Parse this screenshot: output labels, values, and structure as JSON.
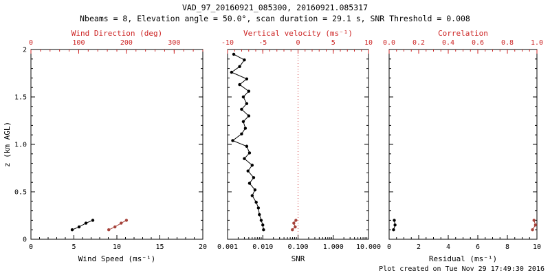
{
  "header": {
    "title": "VAD_97_20160921_085300, 20160921.085317",
    "subtitle": "Nbeams = 8, Elevation angle = 50.0°, scan duration = 29.1 s, SNR Threshold = 0.008"
  },
  "footer": {
    "created": "Plot created on Tue Nov 29 17:49:30 2016"
  },
  "colors": {
    "axis_red": "#cc2222",
    "data_red": "#a6423a",
    "black": "#000000"
  },
  "chart_data": [
    {
      "name": "wind",
      "type": "line",
      "xlabel": "Wind Speed (ms⁻¹)",
      "xlim": [
        0,
        20
      ],
      "x_ticks": [
        0,
        5,
        10,
        15,
        20
      ],
      "x_tick_labels": [
        "0",
        "5",
        "10",
        "15",
        "20"
      ],
      "x_minor": 1,
      "top_label": "Wind Direction (deg)",
      "top_lim": [
        0,
        360
      ],
      "top_ticks": [
        0,
        100,
        200,
        300
      ],
      "top_tick_labels": [
        "0",
        "100",
        "200",
        "300"
      ],
      "top_minor": 20,
      "ylabel": "z (km AGL)",
      "ylim": [
        0,
        2
      ],
      "y_ticks": [
        0,
        0.5,
        1,
        1.5,
        2
      ],
      "y_tick_labels": [
        "0",
        "0.5",
        "1.0",
        "1.5",
        "2"
      ],
      "y_minor": 0.1,
      "series": [
        {
          "name": "wind-speed",
          "color": "#000000",
          "z": [
            0.1,
            0.13,
            0.17,
            0.2
          ],
          "x": [
            4.8,
            5.6,
            6.4,
            7.2
          ]
        },
        {
          "name": "wind-direction",
          "axis": "top",
          "color": "#a6423a",
          "z": [
            0.1,
            0.13,
            0.17,
            0.2
          ],
          "x": [
            163,
            176,
            189,
            200
          ]
        }
      ]
    },
    {
      "name": "snr",
      "type": "line",
      "xlabel": "SNR",
      "xlim": [
        0.001,
        10
      ],
      "x_log": true,
      "x_ticks": [
        0.001,
        0.01,
        0.1,
        1,
        10
      ],
      "x_tick_labels": [
        "0.001",
        "0.010",
        "0.100",
        "1.000",
        "10.000"
      ],
      "top_label": "Vertical velocity (ms⁻¹)",
      "top_lim": [
        -10,
        10
      ],
      "top_ticks": [
        -10,
        -5,
        0,
        5,
        10
      ],
      "top_tick_labels": [
        "-10",
        "-5",
        "0",
        "5",
        "10"
      ],
      "top_minor": 1,
      "ylim": [
        0,
        2
      ],
      "y_ticks": [
        0,
        0.5,
        1,
        1.5,
        2
      ],
      "y_minor": 0.1,
      "ref_top": 0,
      "series": [
        {
          "name": "snr-profile",
          "color": "#000000",
          "z": [
            1.95,
            1.89,
            1.82,
            1.76,
            1.69,
            1.63,
            1.56,
            1.5,
            1.43,
            1.37,
            1.3,
            1.24,
            1.17,
            1.11,
            1.04,
            0.98,
            0.91,
            0.85,
            0.78,
            0.72,
            0.65,
            0.59,
            0.52,
            0.46,
            0.39,
            0.33,
            0.26,
            0.2,
            0.15,
            0.1
          ],
          "x": [
            0.0015,
            0.003,
            0.0022,
            0.0013,
            0.0035,
            0.0022,
            0.004,
            0.0028,
            0.0035,
            0.0025,
            0.004,
            0.0028,
            0.0032,
            0.0025,
            0.0014,
            0.0035,
            0.0042,
            0.003,
            0.005,
            0.0038,
            0.0055,
            0.0042,
            0.006,
            0.005,
            0.0065,
            0.0075,
            0.008,
            0.009,
            0.01,
            0.0105
          ]
        },
        {
          "name": "vertical-velocity",
          "axis": "top",
          "color": "#a6423a",
          "z": [
            0.1,
            0.13,
            0.17,
            0.2
          ],
          "x": [
            -0.8,
            -0.4,
            -0.6,
            -0.3
          ]
        }
      ]
    },
    {
      "name": "residual",
      "type": "line",
      "xlabel": "Residual (ms⁻¹)",
      "xlim": [
        0,
        10
      ],
      "x_ticks": [
        0,
        2,
        4,
        6,
        8,
        10
      ],
      "x_tick_labels": [
        "0",
        "2",
        "4",
        "6",
        "8",
        "10"
      ],
      "x_minor": 0.5,
      "top_label": "Correlation",
      "top_lim": [
        0,
        1
      ],
      "top_ticks": [
        0,
        0.2,
        0.4,
        0.6,
        0.8,
        1.0
      ],
      "top_tick_labels": [
        "0.0",
        "0.2",
        "0.4",
        "0.6",
        "0.8",
        "1.0"
      ],
      "top_minor": 0.05,
      "ylim": [
        0,
        2
      ],
      "y_ticks": [
        0,
        0.5,
        1,
        1.5,
        2
      ],
      "y_minor": 0.1,
      "series": [
        {
          "name": "residual",
          "color": "#000000",
          "z": [
            0.1,
            0.15,
            0.2
          ],
          "x": [
            0.3,
            0.4,
            0.35
          ]
        },
        {
          "name": "correlation",
          "axis": "top",
          "color": "#a6423a",
          "z": [
            0.1,
            0.15,
            0.2
          ],
          "x": [
            0.97,
            0.99,
            0.98
          ]
        }
      ]
    }
  ]
}
